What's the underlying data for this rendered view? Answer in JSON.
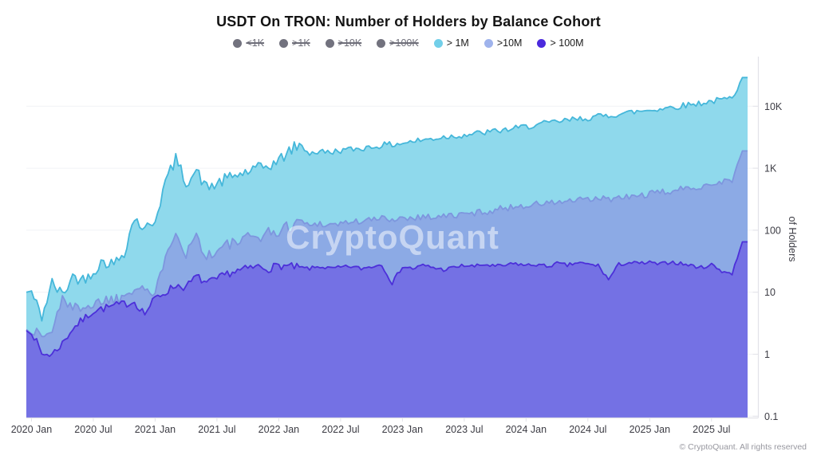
{
  "title": "USDT On TRON: Number of Holders by Balance Cohort",
  "footer": "© CryptoQuant. All rights reserved",
  "watermark": "CryptoQuant",
  "legend": {
    "items": [
      {
        "label": "<1K",
        "color": "#72727e",
        "enabled": false
      },
      {
        "label": ">1K",
        "color": "#72727e",
        "enabled": false
      },
      {
        "label": ">10K",
        "color": "#72727e",
        "enabled": false
      },
      {
        "label": ">100K",
        "color": "#72727e",
        "enabled": false
      },
      {
        "label": "> 1M",
        "color": "#72cfe9",
        "enabled": true
      },
      {
        "label": ">10M",
        "color": "#9fb3ec",
        "enabled": true
      },
      {
        "label": "> 100M",
        "color": "#4b2add",
        "enabled": true
      }
    ]
  },
  "chart_data": {
    "type": "area",
    "title": "USDT On TRON: Number of Holders by Balance Cohort",
    "y_axis_label": "of Holders",
    "y_scale": "log",
    "ylim": [
      0.1,
      40000
    ],
    "y_ticks": [
      {
        "label": "10K",
        "value": 10000
      },
      {
        "label": "1K",
        "value": 1000
      },
      {
        "label": "100",
        "value": 100
      },
      {
        "label": "10",
        "value": 10
      },
      {
        "label": "1",
        "value": 1
      },
      {
        "label": "0.1",
        "value": 0.1
      }
    ],
    "x_start_month": "2020-01",
    "x_end_month": "2025-10",
    "x_ticks": [
      {
        "label": "2020 Jan",
        "month_index": 0
      },
      {
        "label": "2020 Jul",
        "month_index": 6
      },
      {
        "label": "2021 Jan",
        "month_index": 12
      },
      {
        "label": "2021 Jul",
        "month_index": 18
      },
      {
        "label": "2022 Jan",
        "month_index": 24
      },
      {
        "label": "2022 Jul",
        "month_index": 30
      },
      {
        "label": "2023 Jan",
        "month_index": 36
      },
      {
        "label": "2023 Jul",
        "month_index": 42
      },
      {
        "label": "2024 Jan",
        "month_index": 48
      },
      {
        "label": "2024 Jul",
        "month_index": 54
      },
      {
        "label": "2025 Jan",
        "month_index": 60
      },
      {
        "label": "2025 Jul",
        "month_index": 66
      }
    ],
    "disabled_series": [
      "<1K",
      ">1K",
      ">10K",
      ">100K"
    ],
    "series": [
      {
        "name": "> 1M",
        "line_color": "#45b7da",
        "fill_color": "#8fd9ec",
        "values": [
          10,
          4,
          14,
          9,
          18,
          16,
          22,
          32,
          28,
          45,
          160,
          100,
          150,
          600,
          1400,
          600,
          900,
          480,
          560,
          680,
          780,
          880,
          980,
          1100,
          1300,
          1900,
          2400,
          1750,
          1850,
          1800,
          1950,
          2000,
          2100,
          2200,
          2350,
          2400,
          2550,
          2700,
          2850,
          3000,
          3200,
          3300,
          3450,
          3600,
          3750,
          3950,
          4150,
          4400,
          4700,
          5000,
          5300,
          5600,
          5900,
          6200,
          6500,
          6800,
          7100,
          7500,
          7900,
          8300,
          8700,
          9100,
          9600,
          10100,
          10700,
          11300,
          12000,
          12700,
          13500,
          29000
        ]
      },
      {
        "name": ">10M",
        "line_color": "#7d96de",
        "fill_color": "#8caae5",
        "values": [
          2.5,
          2.0,
          2.2,
          9,
          5,
          6.5,
          6,
          8,
          7.5,
          9,
          13,
          12,
          8,
          45,
          100,
          42,
          85,
          38,
          45,
          58,
          64,
          72,
          82,
          90,
          95,
          115,
          145,
          120,
          130,
          122,
          130,
          136,
          140,
          146,
          155,
          152,
          157,
          162,
          165,
          166,
          168,
          172,
          180,
          190,
          200,
          212,
          228,
          242,
          252,
          262,
          272,
          282,
          292,
          300,
          310,
          318,
          320,
          325,
          342,
          362,
          382,
          402,
          425,
          452,
          482,
          520,
          560,
          605,
          660,
          1900
        ]
      },
      {
        "name": "> 100M",
        "line_color": "#4c30d9",
        "fill_color": "#7471e4",
        "values": [
          2.4,
          1.0,
          1.0,
          1.5,
          2.6,
          3.6,
          5,
          5.5,
          6,
          6.5,
          7,
          4.5,
          8,
          10,
          13,
          12,
          18,
          14,
          16,
          20,
          22,
          24,
          26,
          24,
          27,
          26,
          25,
          24,
          26,
          24,
          25,
          26,
          24,
          26,
          28,
          14,
          26,
          24,
          27,
          25,
          23,
          25,
          27,
          26,
          28,
          26,
          27,
          29,
          27,
          28,
          26,
          29,
          27,
          30,
          28,
          27,
          16,
          28,
          30,
          29,
          30,
          28,
          31,
          29,
          27,
          25,
          28,
          22,
          20,
          65
        ]
      }
    ],
    "style": {
      "grid": true,
      "legend_position": "top",
      "jitter_decades": [
        0.05,
        0.055,
        0.032
      ],
      "jitter_early_boost": 2.0,
      "jitter_early_until_month": 26,
      "steps_per_month": 4,
      "grid_color": "#f1f2f6",
      "axis_color": "#e2e2e8",
      "tick_text_color": "#3c3c44"
    }
  }
}
